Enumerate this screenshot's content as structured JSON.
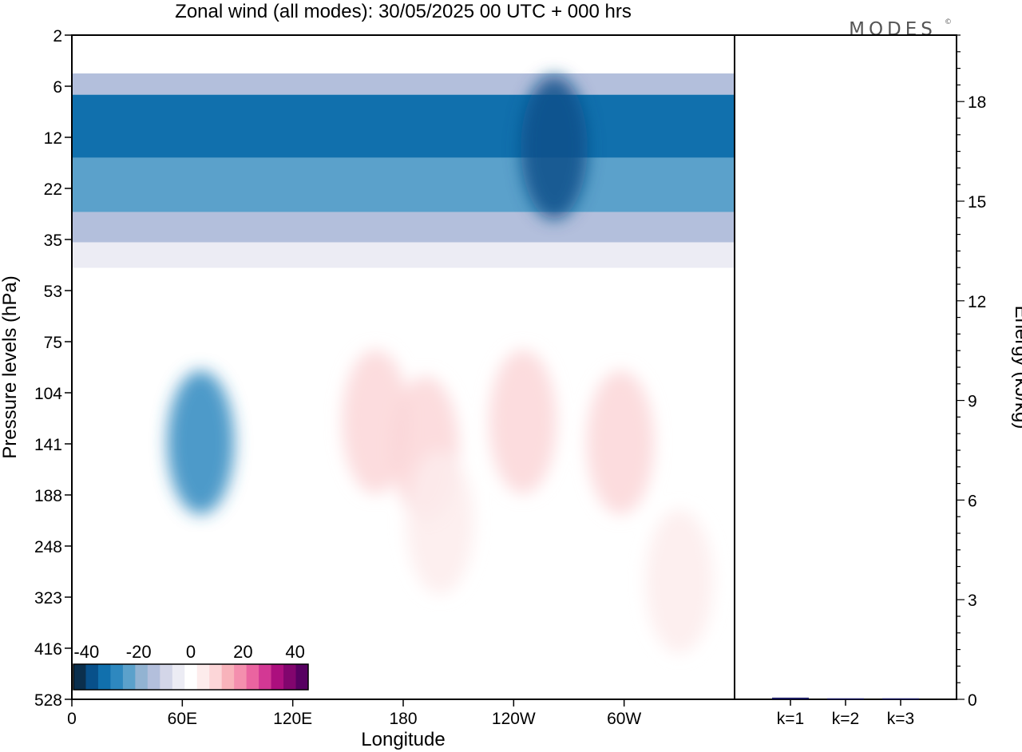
{
  "chart_data": [
    {
      "type": "heatmap",
      "title": "Zonal wind (all modes):  30/05/2025  00 UTC  + 000 hrs",
      "xlabel": "Longitude",
      "ylabel": "Pressure levels (hPa)",
      "x_ticks": [
        "0",
        "60E",
        "120E",
        "180",
        "120W",
        "60W"
      ],
      "y_ticks": [
        "2",
        "6",
        "12",
        "22",
        "35",
        "53",
        "75",
        "104",
        "141",
        "188",
        "248",
        "323",
        "416",
        "528"
      ],
      "colorbar": {
        "tick_labels": [
          "-40",
          "-20",
          "0",
          "20",
          "40"
        ],
        "range": [
          -45,
          45
        ],
        "step": 5,
        "colors": [
          "#0b2f4d",
          "#08508a",
          "#1170ad",
          "#2e88bf",
          "#5ba1cb",
          "#92b3d2",
          "#b3bfdc",
          "#d3d6e8",
          "#ececf4",
          "#ffffff",
          "#fdecec",
          "#fcd6d8",
          "#f8b3bb",
          "#f48fae",
          "#ea64a0",
          "#d33894",
          "#ac0f7e",
          "#82056e",
          "#570061"
        ]
      },
      "bands": [
        {
          "p_top": 2,
          "p_bottom": 5,
          "value": 4
        },
        {
          "p_top": 5,
          "p_bottom": 7,
          "value": -12
        },
        {
          "p_top": 7,
          "p_bottom": 16,
          "value": -32
        },
        {
          "p_top": 16,
          "p_bottom": 28,
          "value": -22
        },
        {
          "p_top": 28,
          "p_bottom": 36,
          "value": -12
        },
        {
          "p_top": 36,
          "p_bottom": 45,
          "value": -2
        },
        {
          "p_top": 45,
          "p_bottom": 528,
          "value": 4
        }
      ],
      "blobs": [
        {
          "lon": 70,
          "p": 140,
          "value": -27
        },
        {
          "lon": 165,
          "p": 125,
          "value": 14
        },
        {
          "lon": 192,
          "p": 145,
          "value": 14
        },
        {
          "lon": 245,
          "p": 125,
          "value": 12
        },
        {
          "lon": 298,
          "p": 140,
          "value": 14
        },
        {
          "lon": 262,
          "p": 14,
          "value": -38
        },
        {
          "lon": 200,
          "p": 220,
          "value": 8
        },
        {
          "lon": 330,
          "p": 300,
          "value": 8
        }
      ]
    },
    {
      "type": "bar",
      "categories": [
        "k=1",
        "k=2",
        "k=3"
      ],
      "values": [
        0.05,
        0.03,
        0.03
      ],
      "ylabel": "Energy (kJ/kg)",
      "y_ticks": [
        "0",
        "3",
        "6",
        "9",
        "12",
        "15",
        "18"
      ],
      "ylim": [
        0,
        20
      ],
      "bar_color": "#1a1a60"
    }
  ],
  "brand": {
    "text": "MODES",
    "mark": "©"
  }
}
